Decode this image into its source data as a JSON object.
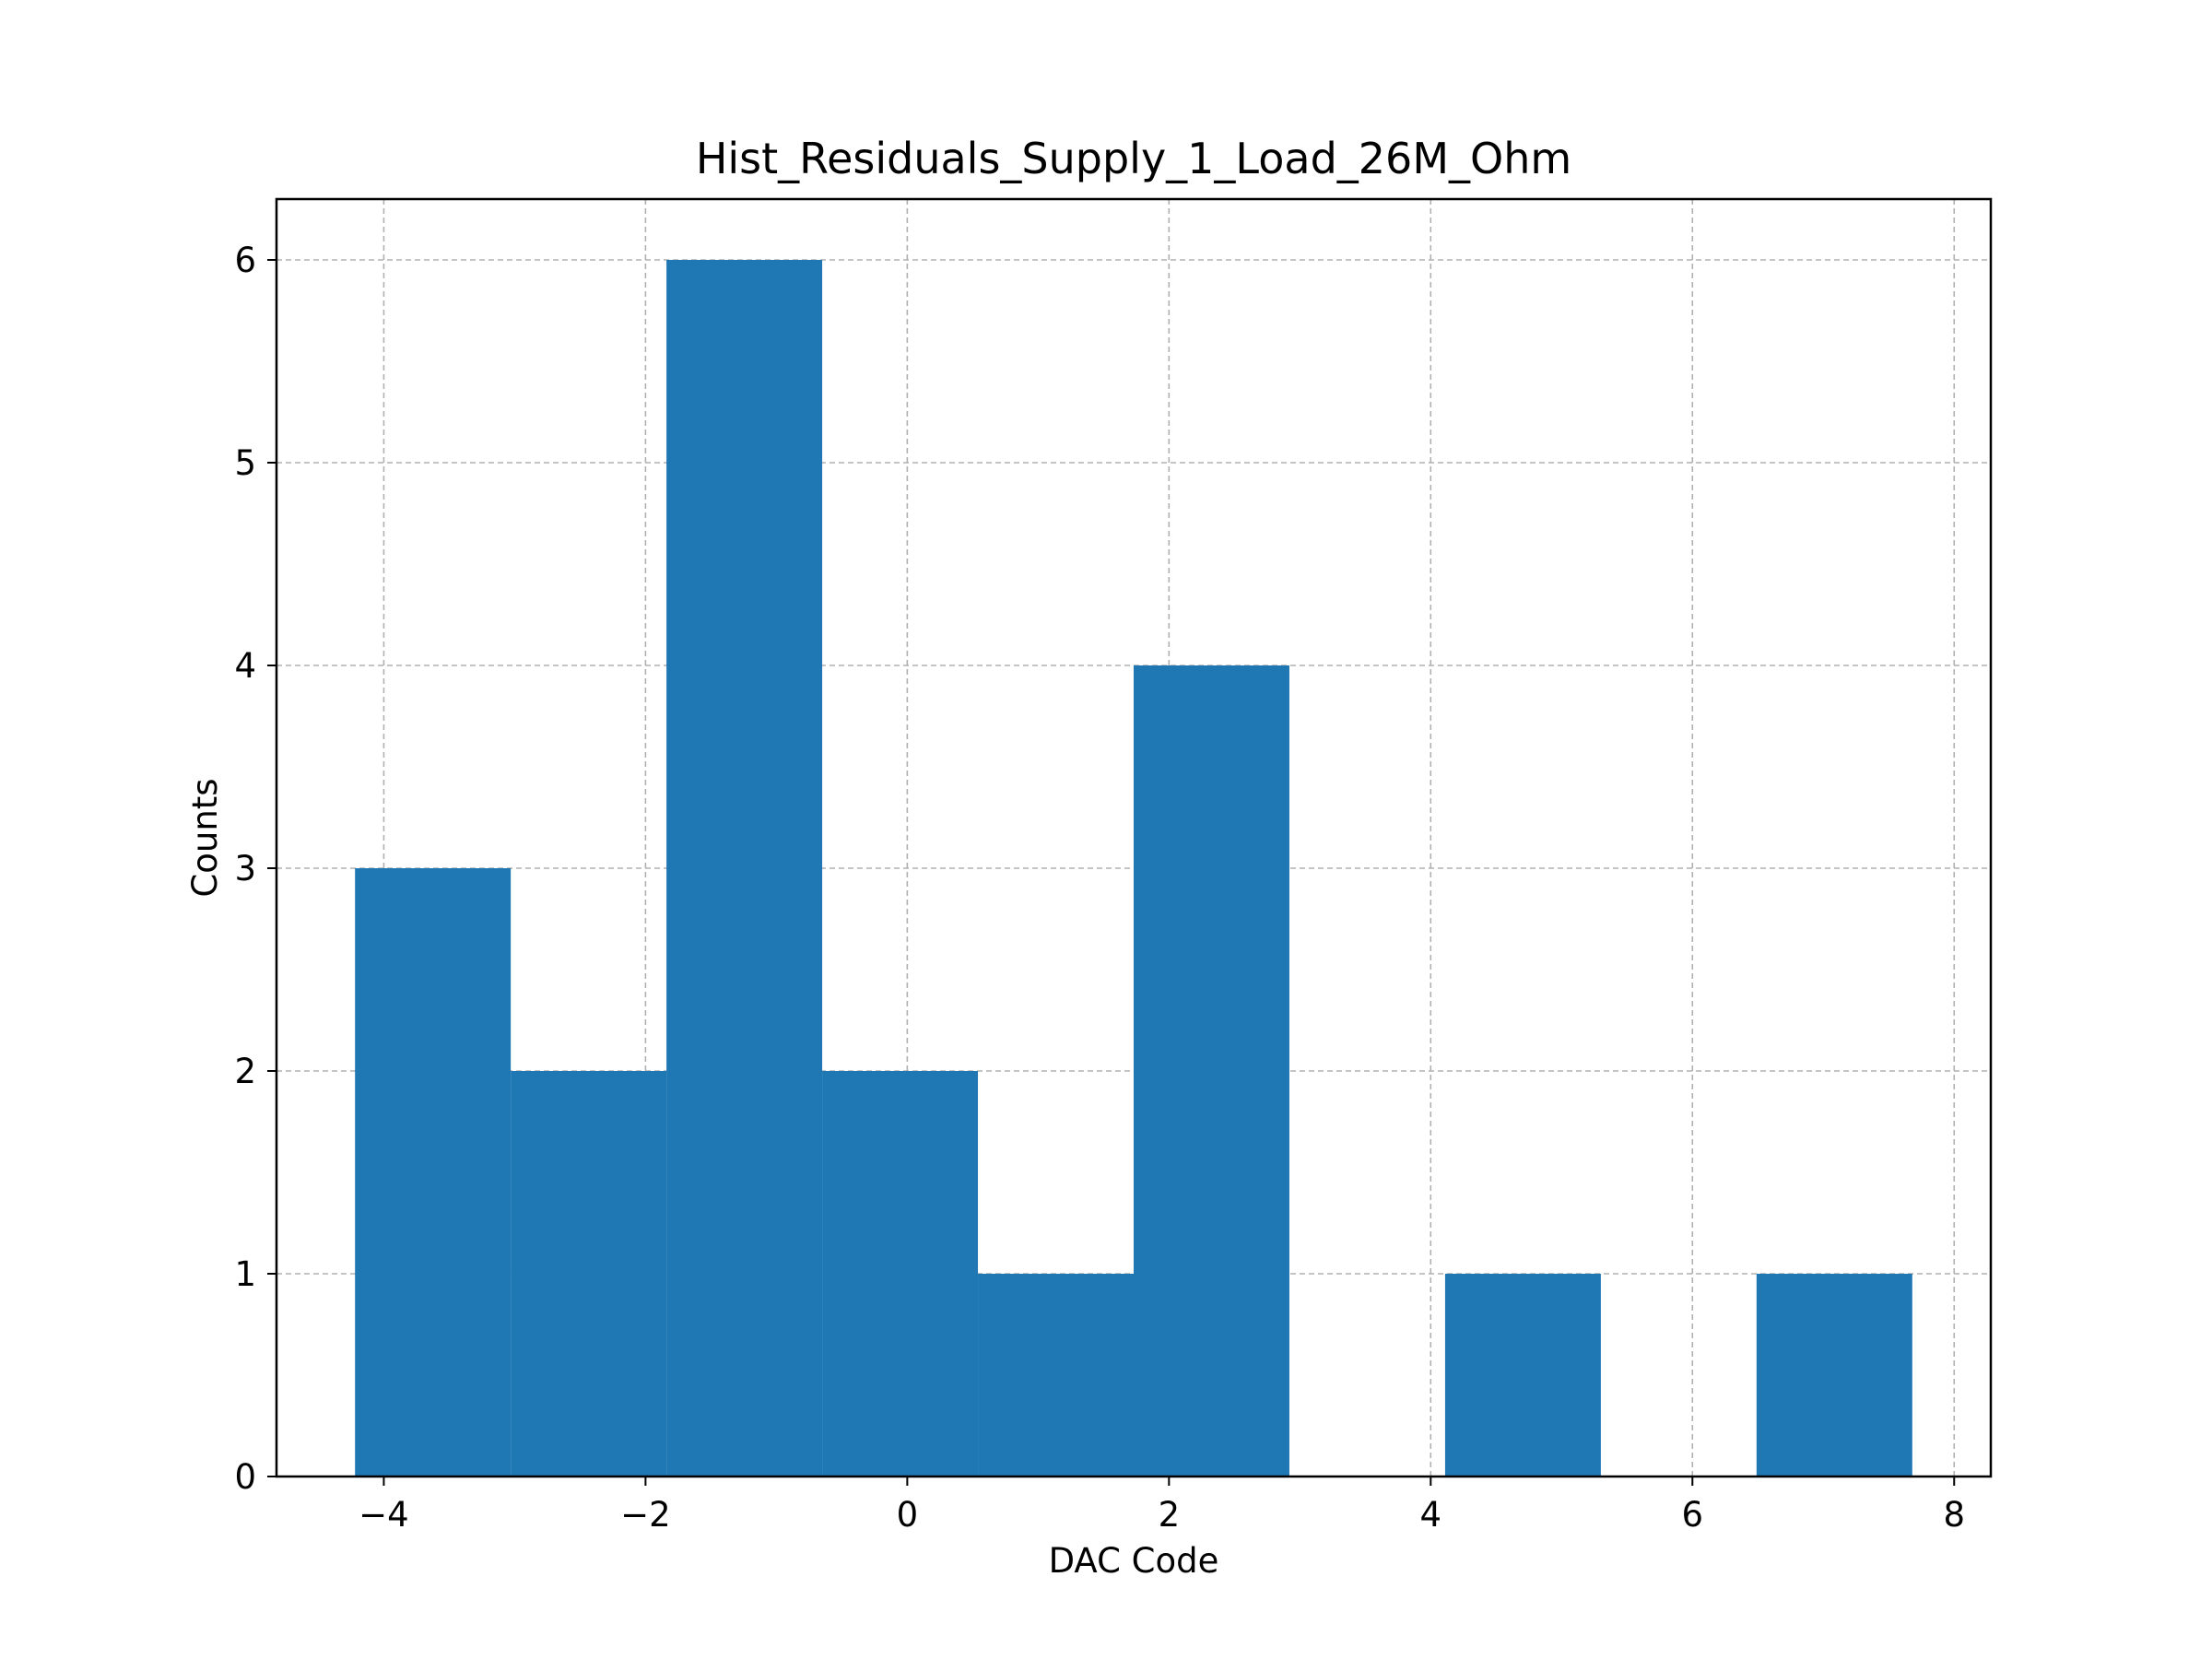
{
  "chart_data": {
    "type": "bar",
    "title": "Hist_Residuals_Supply_1_Load_26M_Ohm",
    "xlabel": "DAC Code",
    "ylabel": "Counts",
    "bin_edges": [
      -4.22,
      -3.03,
      -1.84,
      -0.65,
      0.54,
      1.73,
      2.92,
      4.11,
      5.3,
      6.49,
      7.68
    ],
    "values": [
      3,
      2,
      6,
      2,
      1,
      4,
      0,
      1,
      0,
      1
    ],
    "xlim": [
      -4.82,
      8.28
    ],
    "ylim": [
      0,
      6.3
    ],
    "xticks": [
      -4,
      -2,
      0,
      2,
      4,
      6,
      8
    ],
    "xtick_labels": [
      "−4",
      "−2",
      "0",
      "2",
      "4",
      "6",
      "8"
    ],
    "yticks": [
      0,
      1,
      2,
      3,
      4,
      5,
      6
    ],
    "ytick_labels": [
      "0",
      "1",
      "2",
      "3",
      "4",
      "5",
      "6"
    ],
    "grid": true,
    "colors": {
      "bar": "#1f77b4",
      "grid": "#b0b0b0",
      "axes": "#000000"
    }
  }
}
